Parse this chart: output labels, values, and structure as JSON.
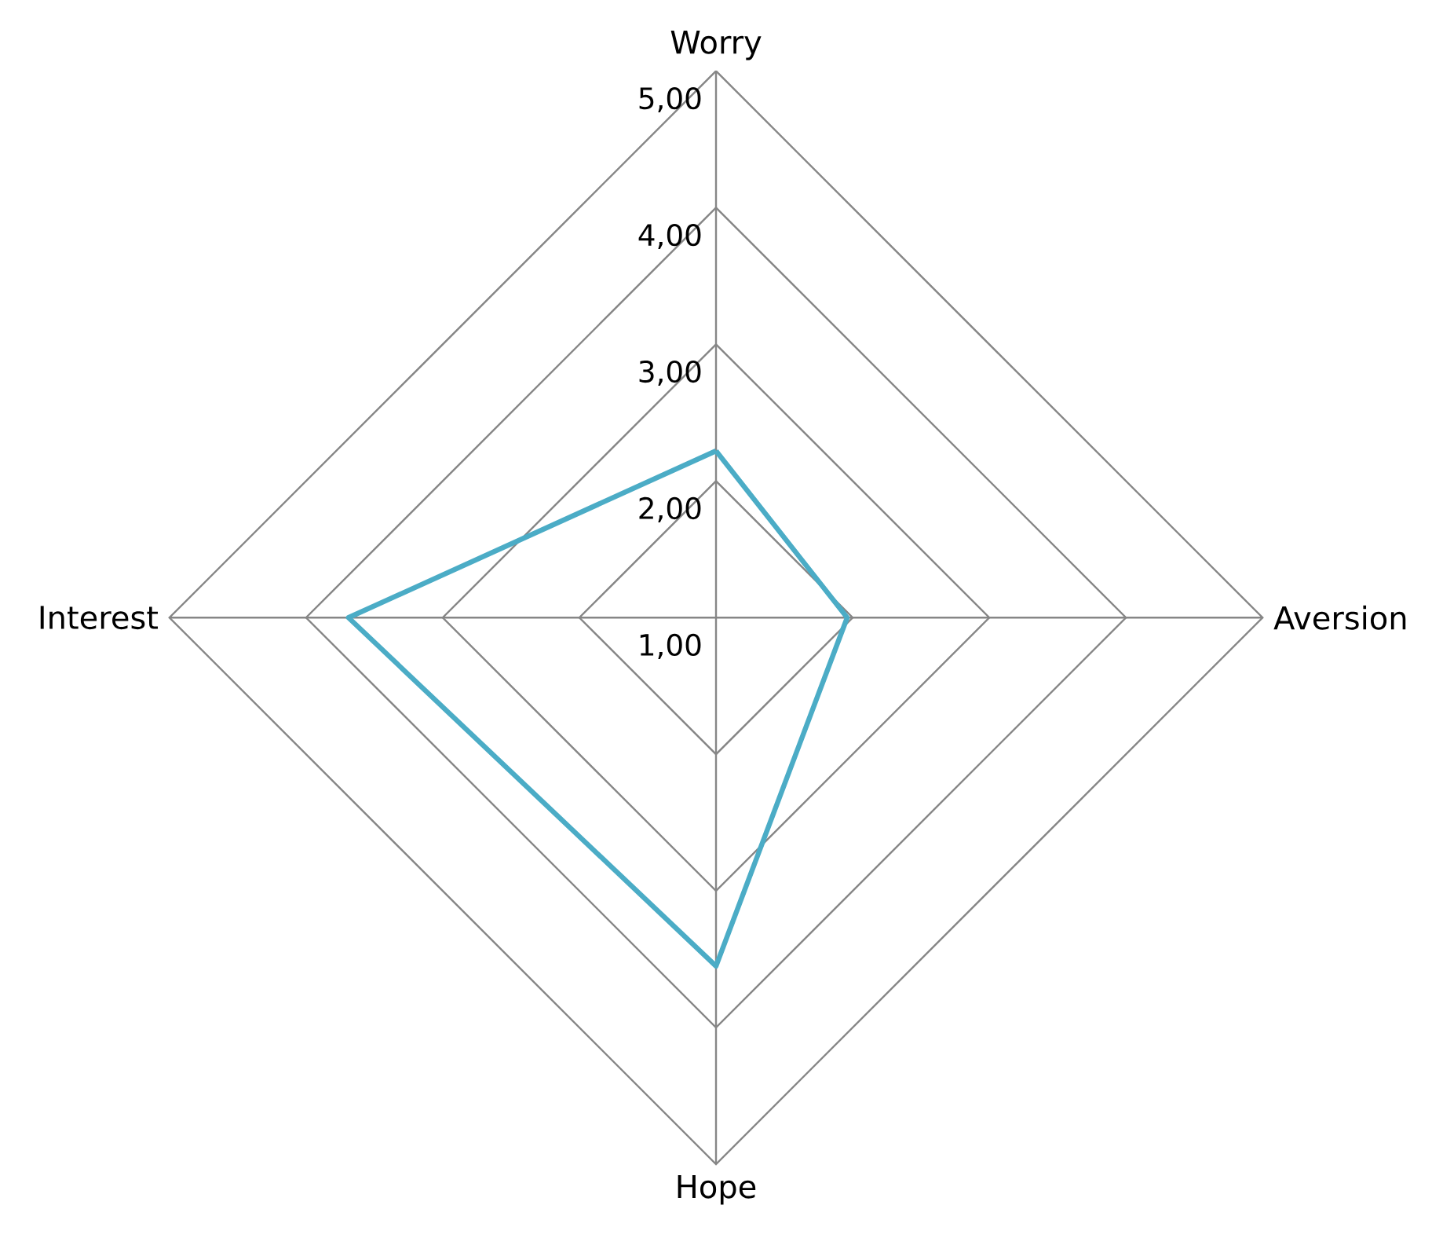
{
  "chart_data": {
    "type": "radar",
    "categories": [
      "Worry",
      "Aversion",
      "Hope",
      "Interest"
    ],
    "series": [
      {
        "color": "#4bacc6",
        "values": [
          2.22,
          1.96,
          3.55,
          3.69
        ]
      }
    ],
    "ylim": [
      1,
      5
    ],
    "yticks": [
      {
        "value": 1,
        "label": "1,00"
      },
      {
        "value": 2,
        "label": "2,00"
      },
      {
        "value": 3,
        "label": "3,00"
      },
      {
        "value": 4,
        "label": "4,00"
      },
      {
        "value": 5,
        "label": "5,00"
      }
    ],
    "grid": true,
    "marker": "none",
    "line_style": "solid"
  }
}
